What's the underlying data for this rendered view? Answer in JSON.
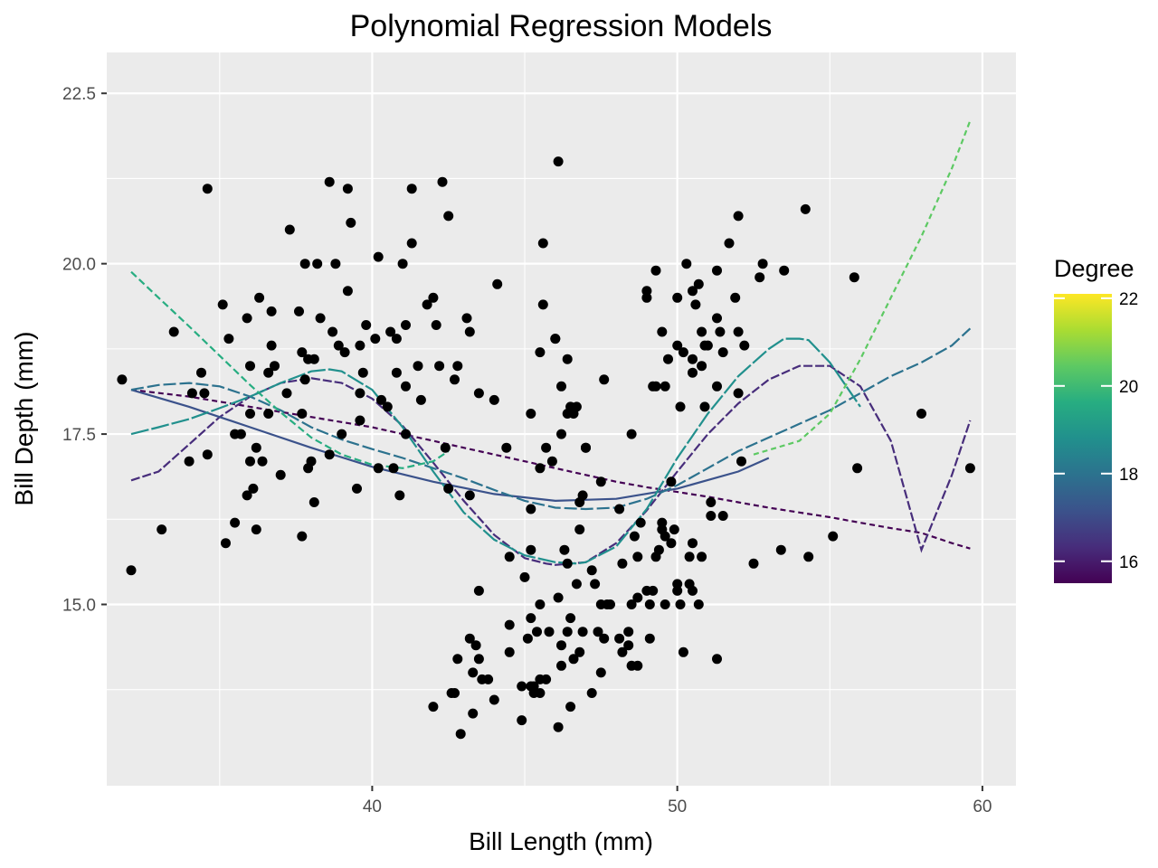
{
  "chart_data": {
    "type": "scatter",
    "title": "Polynomial Regression Models",
    "xlabel": "Bill Length (mm)",
    "ylabel": "Bill Depth (mm)",
    "xlim": [
      31.3,
      61.1
    ],
    "ylim": [
      12.34,
      23.1
    ],
    "x_ticks": [
      40,
      50,
      60
    ],
    "x_tick_labels": [
      "40",
      "50",
      "60"
    ],
    "y_ticks": [
      15.0,
      17.5,
      20.0,
      22.5
    ],
    "y_tick_labels": [
      "15.0",
      "17.5",
      "20.0",
      "22.5"
    ],
    "grid": true,
    "background": "#ebebeb",
    "point_color": "#000000",
    "points": [
      [
        32.1,
        15.5
      ],
      [
        33.1,
        16.1
      ],
      [
        33.5,
        19.0
      ],
      [
        34.0,
        17.1
      ],
      [
        34.1,
        18.1
      ],
      [
        34.4,
        18.4
      ],
      [
        34.5,
        18.1
      ],
      [
        34.6,
        21.1
      ],
      [
        34.6,
        17.2
      ],
      [
        35.1,
        19.4
      ],
      [
        35.2,
        15.9
      ],
      [
        35.3,
        18.9
      ],
      [
        35.5,
        16.2
      ],
      [
        35.5,
        17.5
      ],
      [
        35.7,
        17.5
      ],
      [
        35.9,
        16.6
      ],
      [
        35.9,
        19.2
      ],
      [
        36.0,
        18.5
      ],
      [
        36.0,
        17.8
      ],
      [
        36.0,
        17.1
      ],
      [
        36.2,
        16.1
      ],
      [
        36.2,
        17.3
      ],
      [
        36.3,
        19.5
      ],
      [
        36.4,
        17.1
      ],
      [
        36.6,
        17.8
      ],
      [
        36.6,
        18.4
      ],
      [
        36.7,
        18.8
      ],
      [
        36.7,
        19.3
      ],
      [
        36.8,
        18.5
      ],
      [
        37.0,
        16.9
      ],
      [
        37.2,
        18.1
      ],
      [
        37.3,
        20.5
      ],
      [
        37.6,
        19.3
      ],
      [
        37.7,
        18.7
      ],
      [
        37.7,
        16.0
      ],
      [
        37.8,
        18.3
      ],
      [
        37.8,
        20.0
      ],
      [
        37.9,
        18.6
      ],
      [
        38.1,
        18.6
      ],
      [
        38.1,
        16.5
      ],
      [
        38.2,
        20.0
      ],
      [
        38.3,
        19.2
      ],
      [
        38.6,
        21.2
      ],
      [
        38.6,
        17.2
      ],
      [
        38.7,
        19.0
      ],
      [
        38.8,
        20.0
      ],
      [
        38.9,
        18.8
      ],
      [
        39.0,
        17.5
      ],
      [
        39.1,
        18.7
      ],
      [
        39.2,
        19.6
      ],
      [
        39.2,
        21.1
      ],
      [
        39.3,
        20.6
      ],
      [
        39.5,
        16.7
      ],
      [
        39.6,
        17.7
      ],
      [
        39.7,
        18.4
      ],
      [
        39.8,
        19.1
      ],
      [
        40.1,
        18.9
      ],
      [
        40.2,
        20.1
      ],
      [
        40.2,
        17.0
      ],
      [
        40.3,
        18.0
      ],
      [
        40.5,
        17.9
      ],
      [
        40.6,
        19.0
      ],
      [
        40.7,
        17.0
      ],
      [
        40.8,
        18.4
      ],
      [
        40.9,
        16.6
      ],
      [
        41.0,
        20.0
      ],
      [
        41.1,
        19.1
      ],
      [
        41.1,
        17.5
      ],
      [
        41.3,
        20.3
      ],
      [
        41.3,
        21.1
      ],
      [
        41.5,
        18.5
      ],
      [
        41.6,
        18.0
      ],
      [
        41.8,
        19.4
      ],
      [
        42.0,
        19.5
      ],
      [
        42.1,
        19.1
      ],
      [
        42.2,
        18.5
      ],
      [
        42.3,
        21.2
      ],
      [
        42.5,
        20.7
      ],
      [
        42.7,
        18.3
      ],
      [
        42.8,
        18.5
      ],
      [
        43.2,
        19.0
      ],
      [
        43.1,
        19.2
      ],
      [
        43.2,
        16.6
      ],
      [
        43.5,
        18.1
      ],
      [
        44.1,
        19.7
      ],
      [
        44.0,
        18.0
      ],
      [
        31.8,
        18.3
      ],
      [
        36.1,
        16.7
      ],
      [
        37.9,
        17.0
      ],
      [
        37.7,
        17.8
      ],
      [
        38.0,
        17.1
      ],
      [
        39.6,
        18.1
      ],
      [
        39.6,
        18.8
      ],
      [
        40.8,
        18.9
      ],
      [
        41.1,
        18.2
      ],
      [
        42.0,
        13.5
      ],
      [
        42.4,
        17.3
      ],
      [
        42.5,
        16.7
      ],
      [
        42.6,
        13.7
      ],
      [
        42.7,
        13.7
      ],
      [
        42.8,
        14.2
      ],
      [
        42.9,
        13.1
      ],
      [
        43.2,
        14.5
      ],
      [
        43.3,
        13.4
      ],
      [
        43.3,
        14.0
      ],
      [
        43.4,
        14.4
      ],
      [
        43.5,
        14.2
      ],
      [
        43.5,
        15.2
      ],
      [
        43.6,
        13.9
      ],
      [
        43.8,
        13.9
      ],
      [
        44.0,
        13.6
      ],
      [
        44.4,
        17.3
      ],
      [
        44.5,
        14.3
      ],
      [
        44.5,
        14.7
      ],
      [
        44.5,
        15.7
      ],
      [
        44.9,
        13.3
      ],
      [
        44.9,
        13.8
      ],
      [
        45.0,
        15.4
      ],
      [
        45.1,
        14.5
      ],
      [
        45.2,
        13.8
      ],
      [
        45.2,
        14.8
      ],
      [
        45.2,
        15.8
      ],
      [
        45.2,
        16.4
      ],
      [
        45.3,
        13.7
      ],
      [
        45.3,
        13.8
      ],
      [
        45.4,
        14.6
      ],
      [
        45.5,
        13.7
      ],
      [
        45.5,
        13.9
      ],
      [
        45.5,
        15.0
      ],
      [
        45.5,
        17.0
      ],
      [
        45.6,
        20.3
      ],
      [
        45.7,
        13.9
      ],
      [
        45.8,
        14.6
      ],
      [
        46.1,
        13.2
      ],
      [
        46.1,
        15.1
      ],
      [
        46.2,
        14.1
      ],
      [
        46.2,
        14.4
      ],
      [
        46.3,
        15.8
      ],
      [
        46.4,
        14.6
      ],
      [
        46.4,
        15.6
      ],
      [
        46.5,
        13.5
      ],
      [
        46.5,
        14.8
      ],
      [
        46.6,
        14.2
      ],
      [
        46.7,
        15.3
      ],
      [
        46.8,
        14.3
      ],
      [
        46.8,
        16.1
      ],
      [
        46.9,
        14.6
      ],
      [
        47.0,
        17.3
      ],
      [
        47.2,
        13.7
      ],
      [
        47.2,
        15.5
      ],
      [
        47.3,
        15.3
      ],
      [
        47.4,
        14.6
      ],
      [
        47.5,
        14.0
      ],
      [
        47.5,
        15.0
      ],
      [
        47.6,
        14.5
      ],
      [
        47.7,
        15.0
      ],
      [
        47.8,
        15.0
      ],
      [
        48.1,
        14.5
      ],
      [
        48.2,
        14.3
      ],
      [
        48.2,
        15.6
      ],
      [
        48.4,
        14.4
      ],
      [
        48.4,
        14.6
      ],
      [
        48.5,
        14.1
      ],
      [
        48.5,
        15.0
      ],
      [
        48.6,
        16.0
      ],
      [
        48.7,
        14.1
      ],
      [
        48.7,
        15.1
      ],
      [
        48.7,
        15.7
      ],
      [
        48.8,
        16.2
      ],
      [
        49.0,
        15.2
      ],
      [
        49.1,
        14.5
      ],
      [
        49.1,
        15.0
      ],
      [
        49.2,
        15.2
      ],
      [
        49.3,
        15.7
      ],
      [
        49.4,
        15.8
      ],
      [
        49.5,
        16.1
      ],
      [
        49.5,
        16.2
      ],
      [
        49.6,
        15.0
      ],
      [
        49.6,
        16.0
      ],
      [
        49.8,
        15.9
      ],
      [
        49.8,
        16.8
      ],
      [
        49.9,
        16.1
      ],
      [
        50.0,
        15.2
      ],
      [
        50.0,
        15.3
      ],
      [
        50.1,
        15.0
      ],
      [
        50.2,
        14.3
      ],
      [
        50.4,
        15.3
      ],
      [
        50.4,
        15.7
      ],
      [
        50.5,
        15.2
      ],
      [
        50.5,
        15.9
      ],
      [
        50.7,
        15.0
      ],
      [
        50.8,
        15.7
      ],
      [
        51.1,
        16.3
      ],
      [
        51.1,
        16.5
      ],
      [
        51.3,
        14.2
      ],
      [
        51.5,
        16.3
      ],
      [
        52.5,
        15.6
      ],
      [
        53.4,
        15.8
      ],
      [
        54.3,
        15.7
      ],
      [
        55.1,
        16.0
      ],
      [
        55.9,
        17.0
      ],
      [
        59.6,
        17.0
      ],
      [
        45.2,
        17.8
      ],
      [
        45.5,
        18.7
      ],
      [
        45.6,
        19.4
      ],
      [
        45.7,
        17.3
      ],
      [
        45.9,
        17.1
      ],
      [
        46.0,
        18.9
      ],
      [
        46.1,
        21.5
      ],
      [
        46.2,
        17.5
      ],
      [
        46.2,
        18.2
      ],
      [
        46.4,
        18.6
      ],
      [
        46.4,
        17.8
      ],
      [
        46.5,
        17.9
      ],
      [
        46.6,
        17.8
      ],
      [
        46.7,
        17.9
      ],
      [
        46.8,
        16.5
      ],
      [
        46.9,
        16.6
      ],
      [
        47.0,
        17.3
      ],
      [
        47.5,
        16.8
      ],
      [
        47.6,
        18.3
      ],
      [
        48.1,
        16.4
      ],
      [
        48.5,
        17.5
      ],
      [
        49.0,
        19.5
      ],
      [
        49.2,
        18.2
      ],
      [
        49.3,
        19.9
      ],
      [
        49.5,
        19.0
      ],
      [
        49.6,
        18.2
      ],
      [
        49.7,
        18.6
      ],
      [
        50.0,
        19.5
      ],
      [
        50.1,
        17.9
      ],
      [
        50.2,
        18.7
      ],
      [
        50.3,
        20.0
      ],
      [
        50.5,
        18.4
      ],
      [
        50.5,
        19.6
      ],
      [
        50.6,
        19.4
      ],
      [
        50.7,
        19.7
      ],
      [
        50.8,
        18.5
      ],
      [
        50.8,
        19.0
      ],
      [
        50.9,
        17.9
      ],
      [
        51.0,
        18.8
      ],
      [
        51.3,
        18.2
      ],
      [
        51.3,
        19.2
      ],
      [
        51.4,
        19.0
      ],
      [
        51.5,
        18.7
      ],
      [
        51.7,
        20.3
      ],
      [
        51.9,
        19.5
      ],
      [
        52.0,
        18.1
      ],
      [
        52.0,
        19.0
      ],
      [
        52.0,
        20.7
      ],
      [
        52.2,
        18.8
      ],
      [
        52.7,
        19.8
      ],
      [
        52.8,
        20.0
      ],
      [
        53.5,
        19.9
      ],
      [
        54.2,
        20.8
      ],
      [
        55.8,
        19.8
      ],
      [
        58.0,
        17.8
      ],
      [
        46.0,
        18.9
      ],
      [
        49.0,
        19.6
      ],
      [
        50.0,
        18.8
      ],
      [
        51.3,
        19.9
      ],
      [
        52.1,
        17.1
      ],
      [
        50.9,
        18.8
      ],
      [
        49.3,
        18.2
      ],
      [
        50.5,
        18.6
      ]
    ],
    "series": [
      {
        "degree": 16,
        "color": "#440154",
        "dash": "6,4",
        "x": [
          32.1,
          34,
          36,
          38,
          40,
          41,
          42,
          43,
          44,
          45,
          46,
          47,
          48,
          49,
          50,
          51,
          52,
          53,
          54,
          55,
          56,
          57,
          58,
          59,
          59.6
        ],
        "y": [
          18.15,
          18.05,
          17.9,
          17.75,
          17.6,
          17.5,
          17.4,
          17.3,
          17.2,
          17.1,
          17.0,
          16.9,
          16.8,
          16.72,
          16.65,
          16.58,
          16.5,
          16.42,
          16.35,
          16.28,
          16.2,
          16.12,
          16.05,
          15.9,
          15.82
        ]
      },
      {
        "degree": 17,
        "color": "#472d7b",
        "dash": "10,3",
        "x": [
          32.1,
          33,
          34,
          35,
          36,
          37,
          38,
          39,
          40,
          41,
          42,
          43,
          44,
          45,
          45.7,
          46,
          47,
          48,
          49,
          50,
          51,
          52,
          53,
          54,
          55,
          56,
          57,
          58,
          59,
          59.6
        ],
        "y": [
          16.82,
          16.95,
          17.35,
          17.75,
          18.05,
          18.25,
          18.32,
          18.25,
          18.02,
          17.62,
          17.08,
          16.52,
          16.02,
          15.68,
          15.6,
          15.58,
          15.62,
          15.9,
          16.38,
          16.95,
          17.5,
          17.95,
          18.3,
          18.5,
          18.5,
          18.2,
          17.4,
          15.8,
          16.9,
          17.7
        ]
      },
      {
        "degree": 17.5,
        "color": "#3b528b",
        "dash": "none",
        "x": [
          32.1,
          34,
          36,
          38,
          40,
          42,
          44,
          46,
          48,
          50,
          52,
          53
        ],
        "y": [
          18.15,
          17.9,
          17.6,
          17.3,
          17.02,
          16.8,
          16.62,
          16.52,
          16.55,
          16.7,
          16.95,
          17.15
        ]
      },
      {
        "degree": 18,
        "color": "#2c728e",
        "dash": "14,4",
        "x": [
          32.1,
          33,
          34,
          35,
          36,
          37,
          38,
          39,
          40,
          41,
          42,
          43,
          44,
          45,
          46,
          47,
          48,
          49,
          50,
          51,
          52,
          53,
          54,
          55,
          56,
          57,
          58,
          59,
          59.6
        ],
        "y": [
          18.15,
          18.22,
          18.25,
          18.2,
          18.05,
          17.85,
          17.6,
          17.42,
          17.28,
          17.15,
          17.0,
          16.85,
          16.68,
          16.52,
          16.42,
          16.4,
          16.42,
          16.55,
          16.75,
          17.0,
          17.25,
          17.45,
          17.65,
          17.85,
          18.1,
          18.35,
          18.55,
          18.8,
          19.05
        ]
      },
      {
        "degree": 18.5,
        "color": "#21908d",
        "dash": "20,3",
        "x": [
          32.1,
          33,
          34,
          35,
          36,
          37,
          38,
          38.6,
          39,
          40,
          41,
          42,
          43,
          44,
          45,
          46,
          46.7,
          47,
          48,
          49,
          50,
          51,
          52,
          53,
          53.5,
          54,
          54.3,
          55,
          56
        ],
        "y": [
          17.5,
          17.6,
          17.72,
          17.88,
          18.05,
          18.25,
          18.42,
          18.45,
          18.42,
          18.15,
          17.6,
          16.95,
          16.35,
          15.95,
          15.72,
          15.62,
          15.6,
          15.62,
          15.85,
          16.4,
          17.15,
          17.8,
          18.35,
          18.75,
          18.9,
          18.9,
          18.88,
          18.55,
          17.9
        ]
      },
      {
        "degree": 19.5,
        "color": "#27ad81",
        "dash": "8,4",
        "x": [
          32.1,
          33,
          34,
          35,
          36,
          37,
          38,
          39,
          40,
          41,
          42,
          42.5
        ],
        "y": [
          19.88,
          19.5,
          19.08,
          18.65,
          18.22,
          17.82,
          17.45,
          17.2,
          17.05,
          17.0,
          17.1,
          17.25
        ]
      },
      {
        "degree": 20.5,
        "color": "#5dc963",
        "dash": "6,4",
        "x": [
          52.5,
          54,
          55,
          56,
          57,
          58,
          59,
          59.6
        ],
        "y": [
          17.2,
          17.4,
          17.8,
          18.6,
          19.5,
          20.4,
          21.4,
          22.1
        ]
      }
    ]
  },
  "legend": {
    "title": "Degree",
    "labels": [
      "16",
      "18",
      "20",
      "22"
    ],
    "values": [
      16,
      18,
      20,
      22
    ],
    "range": [
      15.5,
      22.1
    ],
    "colors": [
      "#440154",
      "#472d7b",
      "#3b528b",
      "#2c728e",
      "#21908d",
      "#27ad81",
      "#5dc963",
      "#aadc32",
      "#fde725"
    ]
  }
}
